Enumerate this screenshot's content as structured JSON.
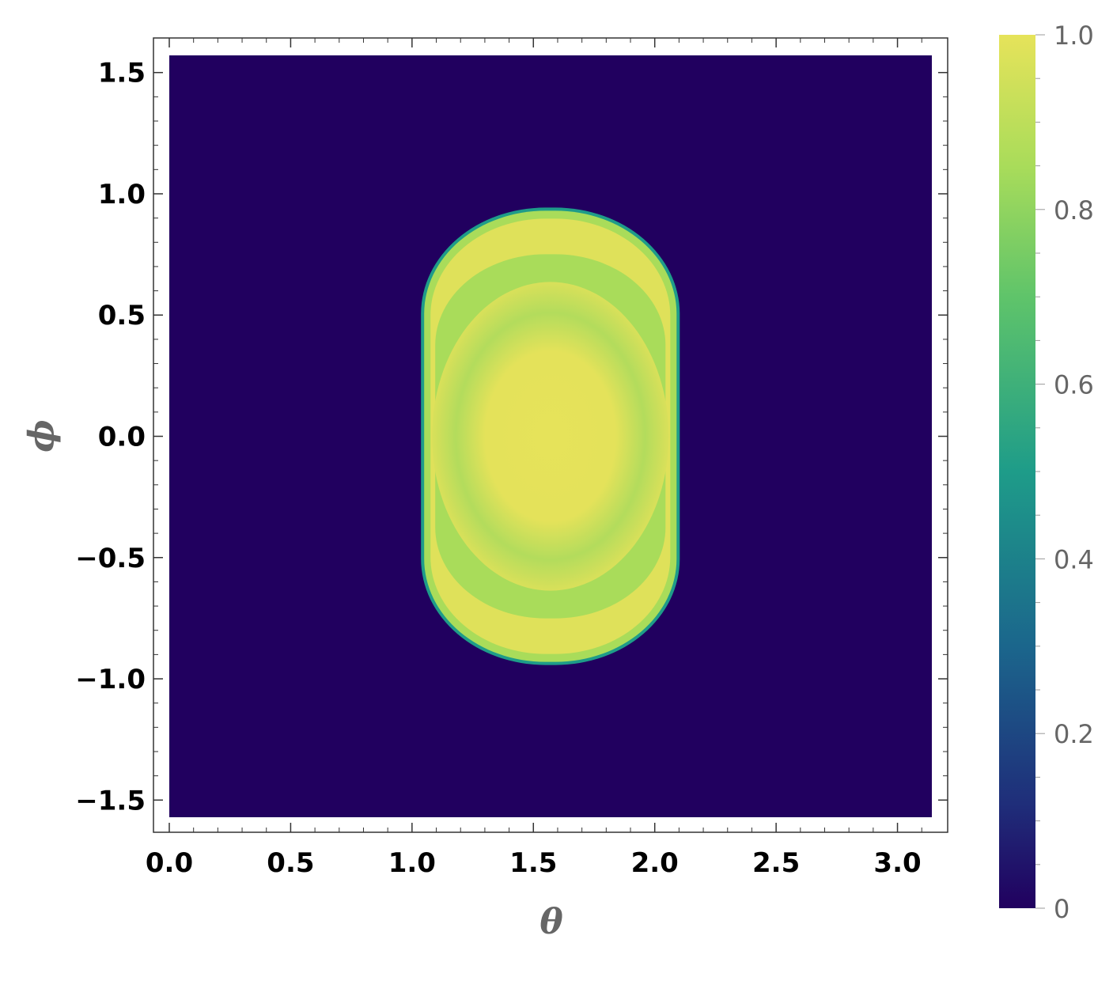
{
  "chart_data": {
    "type": "heatmap",
    "title": "",
    "xlabel": "θ",
    "ylabel": "ϕ",
    "xlim": [
      0,
      3.14159
    ],
    "ylim": [
      -1.5708,
      1.5708
    ],
    "x_ticks": [
      "0.0",
      "0.5",
      "1.0",
      "1.5",
      "2.0",
      "2.5",
      "3.0"
    ],
    "x_tick_values": [
      0,
      0.5,
      1.0,
      1.5,
      2.0,
      2.5,
      3.0
    ],
    "y_ticks": [
      "1.5",
      "1.0",
      "0.5",
      "0.0",
      "−0.5",
      "−1.0",
      "−1.5"
    ],
    "y_tick_values": [
      1.5,
      1.0,
      0.5,
      0.0,
      -0.5,
      -1.0,
      -1.5
    ],
    "colorbar": {
      "min": 0,
      "max": 1,
      "tick_labels": [
        "0",
        "0.2",
        "0.4",
        "0.6",
        "0.8",
        "1.0"
      ],
      "tick_values": [
        0,
        0.2,
        0.4,
        0.6,
        0.8,
        1.0
      ],
      "colormap": [
        "#21005f",
        "#1f2e7a",
        "#1b668c",
        "#1e9c89",
        "#5fc46a",
        "#a9dc5a",
        "#e6e35a"
      ]
    },
    "region": {
      "description_values": "value ≈ 0 outside; ≈ 0.9–1.0 inside stadium region",
      "theta_range": [
        1.05,
        2.09
      ],
      "phi_range": [
        -0.93,
        0.93
      ],
      "center_value": 1.0,
      "background_value": 0.0
    },
    "grid": false,
    "legend": "colorbar-right"
  }
}
